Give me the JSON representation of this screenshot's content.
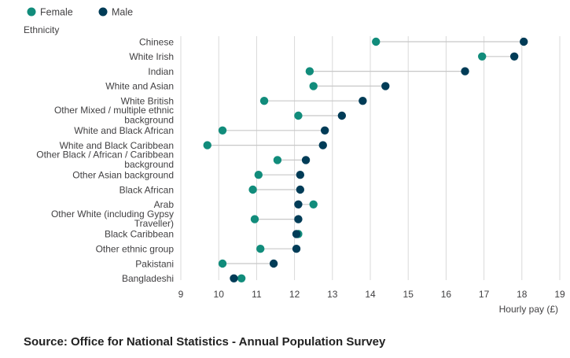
{
  "colors": {
    "female": "#118c7b",
    "male": "#003c57",
    "connector": "#c8c8c8",
    "grid": "#d9d9d9",
    "text": "#414042"
  },
  "source": "Source: Office for National Statistics - Annual Population Survey",
  "chart_data": {
    "type": "dumbbell",
    "title": "",
    "ylabel": "Ethnicity",
    "xlabel": "Hourly pay (£)",
    "xlim": [
      9,
      19
    ],
    "xticks": [
      9,
      10,
      11,
      12,
      13,
      14,
      15,
      16,
      17,
      18,
      19
    ],
    "grid": true,
    "legend": {
      "position": "top-left",
      "entries": [
        "Female",
        "Male"
      ]
    },
    "categories": [
      [
        "Chinese"
      ],
      [
        "White Irish"
      ],
      [
        "Indian"
      ],
      [
        "White and Asian"
      ],
      [
        "White British"
      ],
      [
        "Other Mixed / multiple ethnic",
        "background"
      ],
      [
        "White and Black African"
      ],
      [
        "White and Black Caribbean"
      ],
      [
        "Other Black / African / Caribbean",
        "background"
      ],
      [
        "Other Asian background"
      ],
      [
        "Black African"
      ],
      [
        "Arab"
      ],
      [
        "Other White (including Gypsy",
        "Traveller)"
      ],
      [
        "Black Caribbean"
      ],
      [
        "Other ethnic group"
      ],
      [
        "Pakistani"
      ],
      [
        "Bangladeshi"
      ]
    ],
    "series": [
      {
        "name": "Female",
        "values": [
          14.15,
          16.95,
          12.4,
          12.5,
          11.2,
          12.1,
          10.1,
          9.7,
          11.55,
          11.05,
          10.9,
          12.5,
          10.95,
          12.1,
          11.1,
          10.1,
          10.6
        ]
      },
      {
        "name": "Male",
        "values": [
          18.05,
          17.8,
          16.5,
          14.4,
          13.8,
          13.25,
          12.8,
          12.75,
          12.3,
          12.15,
          12.15,
          12.1,
          12.1,
          12.05,
          12.05,
          11.45,
          10.4
        ]
      }
    ]
  }
}
